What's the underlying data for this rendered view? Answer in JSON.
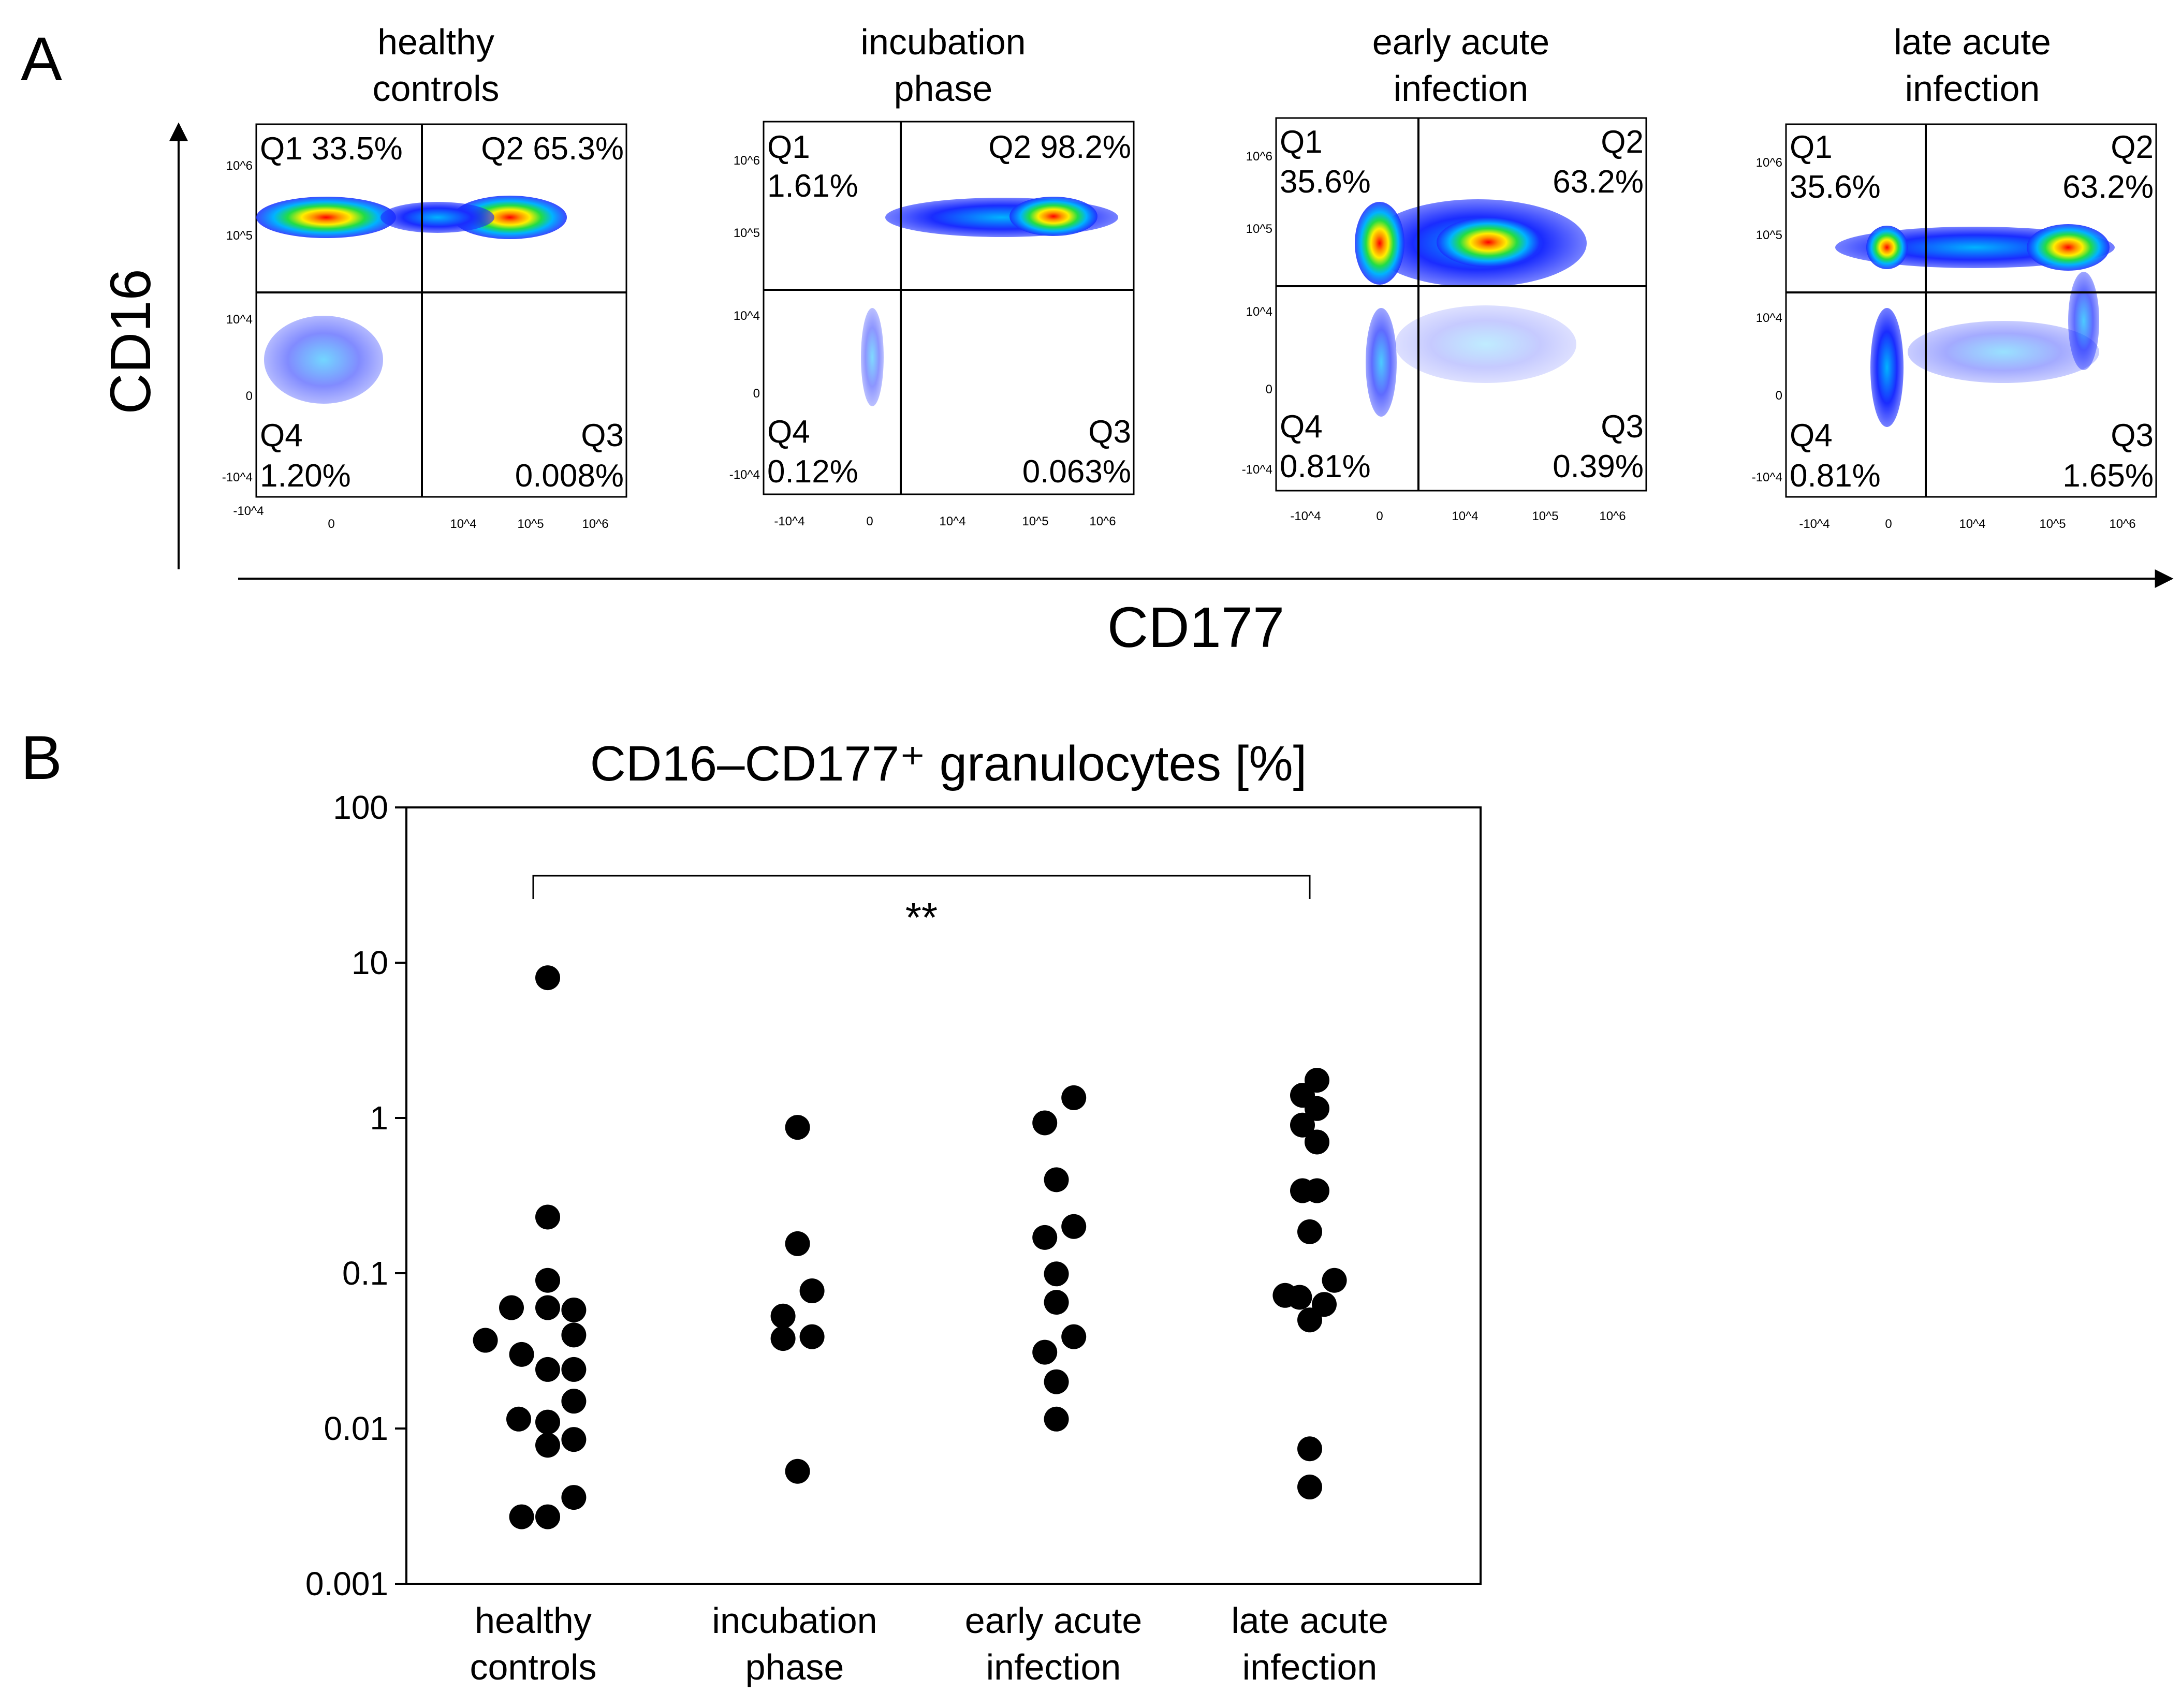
{
  "panel_a": {
    "letter": "A",
    "y_axis_label": "CD16",
    "x_axis_label": "CD177",
    "tick_labels_y": [
      "10^6",
      "10^5",
      "10^4",
      "0",
      "-10^4"
    ],
    "tick_labels_x": [
      "-10^4",
      "0",
      "10^4",
      "10^5",
      "10^6"
    ],
    "plots": [
      {
        "title_line1": "healthy",
        "title_line2": "controls",
        "q1": "Q1 33.5%",
        "q1_val": "",
        "q2": "Q2 65.3%",
        "q2_val": "",
        "q4": "Q4",
        "q4_val": "1.20%",
        "q3": "Q3",
        "q3_val": "0.008%"
      },
      {
        "title_line1": "incubation",
        "title_line2": "phase",
        "q1": "Q1",
        "q1_val": "1.61%",
        "q2": "Q2 98.2%",
        "q2_val": "",
        "q4": "Q4",
        "q4_val": "0.12%",
        "q3": "Q3",
        "q3_val": "0.063%"
      },
      {
        "title_line1": "early acute",
        "title_line2": "infection",
        "q1": "Q1",
        "q1_val": "35.6%",
        "q2": "Q2",
        "q2_val": "63.2%",
        "q4": "Q4",
        "q4_val": "0.81%",
        "q3": "Q3",
        "q3_val": "0.39%"
      },
      {
        "title_line1": "late acute",
        "title_line2": "infection",
        "q1": "Q1",
        "q1_val": "35.6%",
        "q2": "Q2",
        "q2_val": "63.2%",
        "q4": "Q4",
        "q4_val": "0.81%",
        "q3": "Q3",
        "q3_val": "1.65%"
      }
    ]
  },
  "panel_b": {
    "letter": "B"
  },
  "chart_data": {
    "type": "scatter",
    "title": "CD16–CD177⁺ granulocytes [%]",
    "yscale": "log",
    "ylim": [
      0.001,
      100
    ],
    "yticks": [
      {
        "value": 100,
        "label": "100"
      },
      {
        "value": 10,
        "label": "10"
      },
      {
        "value": 1,
        "label": "1"
      },
      {
        "value": 0.1,
        "label": "0.1"
      },
      {
        "value": 0.01,
        "label": "0.01"
      },
      {
        "value": 0.001,
        "label": "0.001"
      }
    ],
    "categories": [
      {
        "line1": "healthy",
        "line2": "controls"
      },
      {
        "line1": "incubation",
        "line2": "phase"
      },
      {
        "line1": "early acute",
        "line2": "infection"
      },
      {
        "line1": "late acute",
        "line2": "infection"
      }
    ],
    "significance": {
      "from": 0,
      "to": 3,
      "label": "**"
    },
    "series": [
      {
        "name": "healthy controls",
        "points": [
          {
            "v": 8.0,
            "j": 0.1
          },
          {
            "v": 0.23,
            "j": 0.1
          },
          {
            "v": 0.09,
            "j": 0.1
          },
          {
            "v": 0.06,
            "j": -0.15
          },
          {
            "v": 0.06,
            "j": 0.1
          },
          {
            "v": 0.058,
            "j": 0.28
          },
          {
            "v": 0.037,
            "j": -0.33
          },
          {
            "v": 0.04,
            "j": 0.28
          },
          {
            "v": 0.03,
            "j": -0.08
          },
          {
            "v": 0.024,
            "j": 0.1
          },
          {
            "v": 0.024,
            "j": 0.28
          },
          {
            "v": 0.015,
            "j": 0.28
          },
          {
            "v": 0.0115,
            "j": -0.1
          },
          {
            "v": 0.011,
            "j": 0.1
          },
          {
            "v": 0.0085,
            "j": 0.28
          },
          {
            "v": 0.0078,
            "j": 0.1
          },
          {
            "v": 0.0036,
            "j": 0.28
          },
          {
            "v": 0.0027,
            "j": -0.08
          },
          {
            "v": 0.0027,
            "j": 0.1
          }
        ]
      },
      {
        "name": "incubation phase",
        "points": [
          {
            "v": 0.87,
            "j": 0.02
          },
          {
            "v": 0.155,
            "j": 0.02
          },
          {
            "v": 0.077,
            "j": 0.12
          },
          {
            "v": 0.053,
            "j": -0.08
          },
          {
            "v": 0.038,
            "j": -0.08
          },
          {
            "v": 0.039,
            "j": 0.12
          },
          {
            "v": 0.0053,
            "j": 0.02
          }
        ]
      },
      {
        "name": "early acute infection",
        "points": [
          {
            "v": 1.35,
            "j": 0.14
          },
          {
            "v": 0.93,
            "j": -0.06
          },
          {
            "v": 0.4,
            "j": 0.02
          },
          {
            "v": 0.2,
            "j": 0.14
          },
          {
            "v": 0.17,
            "j": -0.06
          },
          {
            "v": 0.099,
            "j": 0.02
          },
          {
            "v": 0.065,
            "j": 0.02
          },
          {
            "v": 0.039,
            "j": 0.14
          },
          {
            "v": 0.031,
            "j": -0.06
          },
          {
            "v": 0.02,
            "j": 0.02
          },
          {
            "v": 0.0115,
            "j": 0.02
          }
        ]
      },
      {
        "name": "late acute infection",
        "points": [
          {
            "v": 1.75,
            "j": 0.05
          },
          {
            "v": 1.4,
            "j": -0.05
          },
          {
            "v": 1.15,
            "j": 0.05
          },
          {
            "v": 0.9,
            "j": -0.05
          },
          {
            "v": 0.7,
            "j": 0.05
          },
          {
            "v": 0.34,
            "j": -0.05
          },
          {
            "v": 0.34,
            "j": 0.05
          },
          {
            "v": 0.185,
            "j": 0.0
          },
          {
            "v": 0.09,
            "j": 0.17
          },
          {
            "v": 0.072,
            "j": -0.17
          },
          {
            "v": 0.07,
            "j": -0.07
          },
          {
            "v": 0.063,
            "j": 0.1
          },
          {
            "v": 0.05,
            "j": 0.0
          },
          {
            "v": 0.0074,
            "j": 0.0
          },
          {
            "v": 0.0042,
            "j": 0.0
          }
        ]
      }
    ]
  }
}
